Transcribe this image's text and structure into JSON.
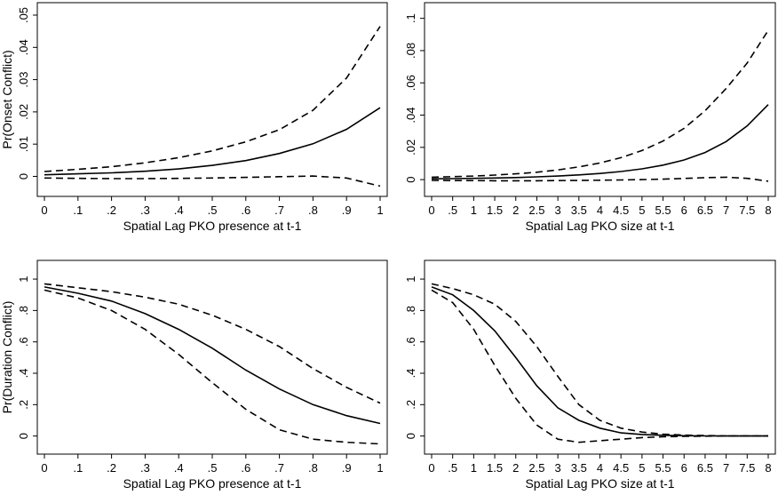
{
  "chart_data": [
    {
      "type": "line",
      "xlabel": "Spatial Lag PKO presence at t-1",
      "ylabel": "Pr(Onset Conflict)",
      "xlim": [
        0,
        1
      ],
      "ylim": [
        -0.004,
        0.05
      ],
      "xticks": [
        0,
        0.1,
        0.2,
        0.3,
        0.4,
        0.5,
        0.6,
        0.7,
        0.8,
        0.9,
        1
      ],
      "xticklabels": [
        "0",
        ".1",
        ".2",
        ".3",
        ".4",
        ".5",
        ".6",
        ".7",
        ".8",
        ".9",
        "1"
      ],
      "yticks": [
        0,
        0.01,
        0.02,
        0.03,
        0.04,
        0.05
      ],
      "yticklabels": [
        "0",
        ".01",
        ".02",
        ".03",
        ".04",
        ".05"
      ],
      "x": [
        0,
        0.1,
        0.2,
        0.3,
        0.4,
        0.5,
        0.6,
        0.7,
        0.8,
        0.9,
        1
      ],
      "series": [
        {
          "style": "solid",
          "values": [
            0.0005,
            0.0008,
            0.0011,
            0.0016,
            0.0023,
            0.0034,
            0.0049,
            0.0071,
            0.0101,
            0.0146,
            0.0213
          ]
        },
        {
          "style": "dashed",
          "values": [
            0.0015,
            0.0022,
            0.003,
            0.0042,
            0.0058,
            0.0079,
            0.0107,
            0.0145,
            0.0205,
            0.0305,
            0.0465
          ]
        },
        {
          "style": "dashed",
          "values": [
            -0.0005,
            -0.0006,
            -0.0007,
            -0.0007,
            -0.0006,
            -0.0005,
            -0.0003,
            -0.0001,
            0.0001,
            -0.0005,
            -0.003
          ]
        }
      ]
    },
    {
      "type": "line",
      "xlabel": "Spatial Lag PKO size at t-1",
      "ylabel": "",
      "xlim": [
        0,
        8
      ],
      "ylim": [
        -0.006,
        0.102
      ],
      "xticks": [
        0,
        0.5,
        1,
        1.5,
        2,
        2.5,
        3,
        3.5,
        4,
        4.5,
        5,
        5.5,
        6,
        6.5,
        7,
        7.5,
        8
      ],
      "xticklabels": [
        "0",
        ".5",
        "1",
        "1.5",
        "2",
        "2.5",
        "3",
        "3.5",
        "4",
        "4.5",
        "5",
        "5.5",
        "6",
        "6.5",
        "7",
        "7.5",
        "8"
      ],
      "yticks": [
        0,
        0.02,
        0.04,
        0.06,
        0.08,
        0.1
      ],
      "yticklabels": [
        "0",
        ".02",
        ".04",
        ".06",
        ".08",
        ".1"
      ],
      "x": [
        0,
        0.5,
        1,
        1.5,
        2,
        2.5,
        3,
        3.5,
        4,
        4.5,
        5,
        5.5,
        6,
        6.5,
        7,
        7.5,
        8
      ],
      "series": [
        {
          "style": "solid",
          "values": [
            0.0005,
            0.0006,
            0.0008,
            0.001,
            0.0013,
            0.0017,
            0.0022,
            0.0029,
            0.0038,
            0.005,
            0.0067,
            0.009,
            0.0122,
            0.0168,
            0.0236,
            0.0333,
            0.0465
          ]
        },
        {
          "style": "dashed",
          "values": [
            0.0015,
            0.0018,
            0.0022,
            0.0028,
            0.0036,
            0.0046,
            0.006,
            0.0079,
            0.0103,
            0.0136,
            0.018,
            0.0239,
            0.0318,
            0.0427,
            0.0565,
            0.0723,
            0.0925
          ]
        },
        {
          "style": "dashed",
          "values": [
            -0.0005,
            -0.0006,
            -0.0006,
            -0.0007,
            -0.0007,
            -0.0007,
            -0.0006,
            -0.0005,
            -0.0004,
            -0.0002,
            0.0,
            0.0003,
            0.0007,
            0.0012,
            0.0015,
            0.0008,
            -0.001
          ]
        }
      ]
    },
    {
      "type": "line",
      "xlabel": "Spatial Lag PKO presence at t-1",
      "ylabel": "Pr(Duration Conflict)",
      "xlim": [
        0,
        1
      ],
      "ylim": [
        -0.07,
        1.04
      ],
      "xticks": [
        0,
        0.1,
        0.2,
        0.3,
        0.4,
        0.5,
        0.6,
        0.7,
        0.8,
        0.9,
        1
      ],
      "xticklabels": [
        "0",
        ".1",
        ".2",
        ".3",
        ".4",
        ".5",
        ".6",
        ".7",
        ".8",
        ".9",
        "1"
      ],
      "yticks": [
        0,
        0.2,
        0.4,
        0.6,
        0.8,
        1
      ],
      "yticklabels": [
        "0",
        ".2",
        ".4",
        ".6",
        ".8",
        "1"
      ],
      "x": [
        0,
        0.1,
        0.2,
        0.3,
        0.4,
        0.5,
        0.6,
        0.7,
        0.8,
        0.9,
        1
      ],
      "series": [
        {
          "style": "solid",
          "values": [
            0.95,
            0.91,
            0.86,
            0.78,
            0.68,
            0.56,
            0.42,
            0.3,
            0.2,
            0.13,
            0.08
          ]
        },
        {
          "style": "dashed",
          "values": [
            0.97,
            0.945,
            0.92,
            0.885,
            0.84,
            0.77,
            0.68,
            0.57,
            0.43,
            0.31,
            0.21
          ]
        },
        {
          "style": "dashed",
          "values": [
            0.93,
            0.88,
            0.8,
            0.68,
            0.52,
            0.34,
            0.17,
            0.04,
            -0.02,
            -0.04,
            -0.05
          ]
        }
      ]
    },
    {
      "type": "line",
      "xlabel": "Spatial Lag PKO size at t-1",
      "ylabel": "",
      "xlim": [
        0,
        8
      ],
      "ylim": [
        -0.07,
        1.04
      ],
      "xticks": [
        0,
        0.5,
        1,
        1.5,
        2,
        2.5,
        3,
        3.5,
        4,
        4.5,
        5,
        5.5,
        6,
        6.5,
        7,
        7.5,
        8
      ],
      "xticklabels": [
        "0",
        ".5",
        "1",
        "1.5",
        "2",
        "2.5",
        "3",
        "3.5",
        "4",
        "4.5",
        "5",
        "5.5",
        "6",
        "6.5",
        "7",
        "7.5",
        "8"
      ],
      "yticks": [
        0,
        0.2,
        0.4,
        0.6,
        0.8,
        1
      ],
      "yticklabels": [
        "0",
        ".2",
        ".4",
        ".6",
        ".8",
        "1"
      ],
      "x": [
        0,
        0.5,
        1,
        1.5,
        2,
        2.5,
        3,
        3.5,
        4,
        4.5,
        5,
        5.5,
        6,
        6.5,
        7,
        7.5,
        8
      ],
      "series": [
        {
          "style": "solid",
          "values": [
            0.95,
            0.9,
            0.8,
            0.67,
            0.5,
            0.32,
            0.18,
            0.1,
            0.05,
            0.02,
            0.01,
            0.005,
            0.002,
            0.001,
            0.0,
            0.0,
            0.0
          ]
        },
        {
          "style": "dashed",
          "values": [
            0.97,
            0.94,
            0.9,
            0.84,
            0.73,
            0.57,
            0.38,
            0.2,
            0.1,
            0.05,
            0.025,
            0.012,
            0.006,
            0.003,
            0.001,
            0.0,
            0.0
          ]
        },
        {
          "style": "dashed",
          "values": [
            0.93,
            0.85,
            0.68,
            0.45,
            0.24,
            0.07,
            -0.02,
            -0.04,
            -0.03,
            -0.02,
            -0.01,
            -0.005,
            -0.002,
            -0.001,
            0.0,
            0.0,
            0.0
          ]
        }
      ]
    }
  ]
}
